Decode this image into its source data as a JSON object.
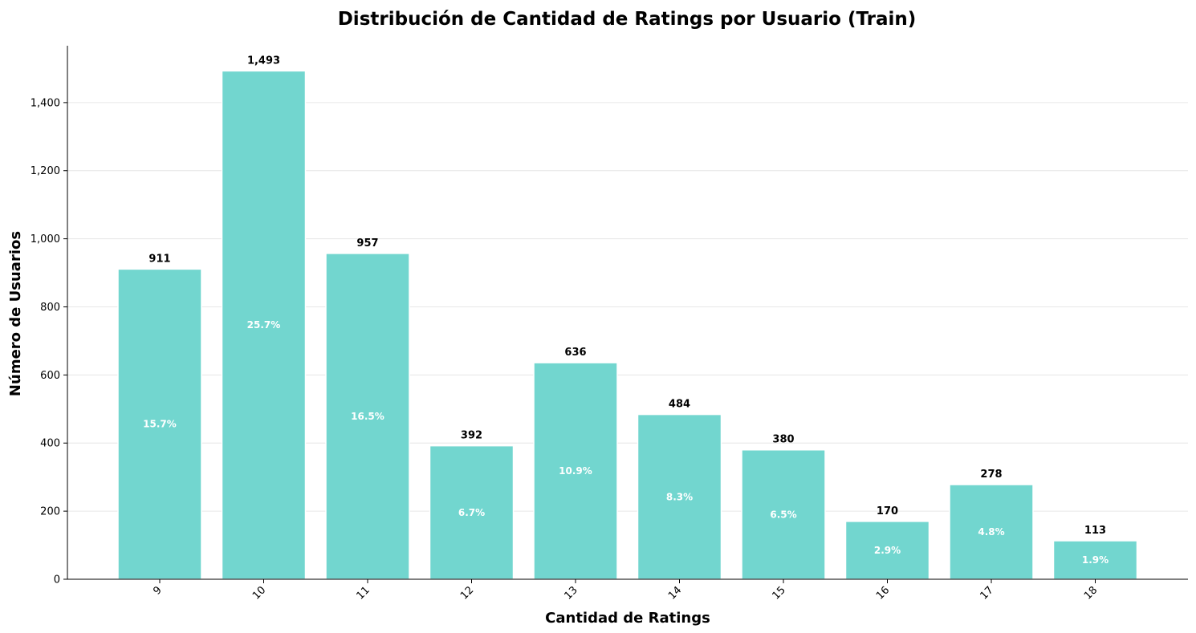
{
  "chart_data": {
    "type": "bar",
    "title": "Distribución de Cantidad de Ratings por Usuario (Train)",
    "xlabel": "Cantidad de Ratings",
    "ylabel": "Número de Usuarios",
    "categories": [
      "9",
      "10",
      "11",
      "12",
      "13",
      "14",
      "15",
      "16",
      "17",
      "18"
    ],
    "values": [
      911,
      1493,
      957,
      392,
      636,
      484,
      380,
      170,
      278,
      113
    ],
    "value_labels": [
      "911",
      "1,493",
      "957",
      "392",
      "636",
      "484",
      "380",
      "170",
      "278",
      "113"
    ],
    "percent_labels": [
      "15.7%",
      "25.7%",
      "16.5%",
      "6.7%",
      "10.9%",
      "8.3%",
      "6.5%",
      "2.9%",
      "4.8%",
      "1.9%"
    ],
    "ylim": [
      0,
      1567
    ],
    "yticks": [
      0,
      200,
      400,
      600,
      800,
      1000,
      1200,
      1400
    ],
    "ytick_labels": [
      "0",
      "200",
      "400",
      "600",
      "800",
      "1,000",
      "1,200",
      "1,400"
    ],
    "grid": "y",
    "legend": "none",
    "colors": {
      "bar": "#72d6cf",
      "bar_edge": "#ffffff",
      "grid": "#e6e6e6",
      "axis": "#000000"
    }
  }
}
